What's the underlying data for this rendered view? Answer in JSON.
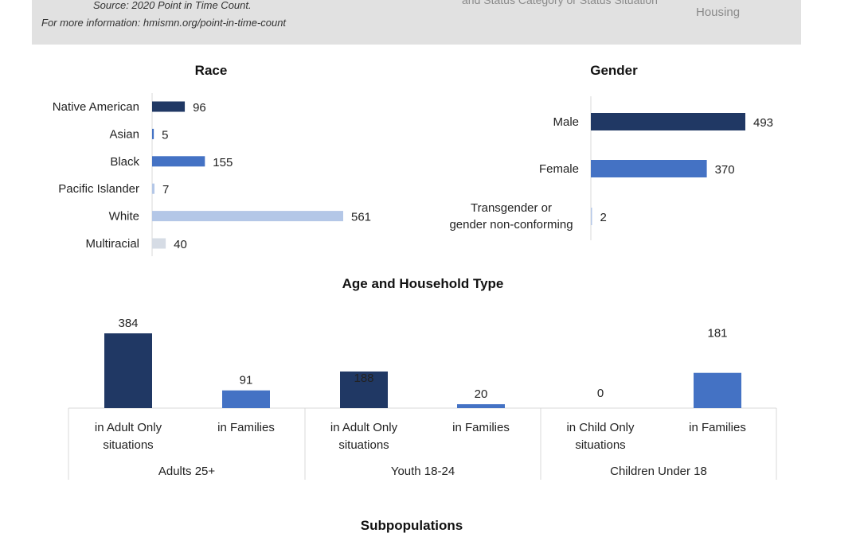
{
  "banner": {
    "source": "Source: 2020 Point in Time Count.",
    "more_info": "For more information: hmismn.org/point-in-time-count",
    "cut_text": "and Status          Category or Status              Situation",
    "housing": "Housing"
  },
  "colors": {
    "navy": "#203864",
    "blue": "#4472c4",
    "light_blue": "#b4c7e7",
    "gray": "#d6dce5",
    "banner_bg": "#e1e1e1"
  },
  "chart_data": [
    {
      "id": "race",
      "type": "bar",
      "orientation": "horizontal",
      "title": "Race",
      "categories": [
        "Native American",
        "Asian",
        "Black",
        "Pacific Islander",
        "White",
        "Multiracial"
      ],
      "values": [
        96,
        5,
        155,
        7,
        561,
        40
      ],
      "bar_colors": [
        "#203864",
        "#4472c4",
        "#4472c4",
        "#b4c7e7",
        "#b4c7e7",
        "#d6dce5"
      ],
      "xlim": [
        0,
        561
      ],
      "grid": false,
      "data_labels": true
    },
    {
      "id": "gender",
      "type": "bar",
      "orientation": "horizontal",
      "title": "Gender",
      "categories": [
        "Male",
        "Female",
        "Transgender or gender non-conforming"
      ],
      "values": [
        493,
        370,
        2
      ],
      "bar_colors": [
        "#203864",
        "#4472c4",
        "#b4c7e7"
      ],
      "xlim": [
        0,
        493
      ],
      "grid": false,
      "data_labels": true
    },
    {
      "id": "age",
      "type": "bar",
      "orientation": "vertical",
      "title": "Age and Household Type",
      "groups": [
        {
          "label": "Adults 25+",
          "categories": [
            "in Adult Only situations",
            "in Families"
          ],
          "values": [
            384,
            91
          ]
        },
        {
          "label": "Youth 18-24",
          "categories": [
            "in Adult Only situations",
            "in Families"
          ],
          "values": [
            188,
            20
          ]
        },
        {
          "label": "Children Under 18",
          "categories": [
            "in Child Only situations",
            "in Families"
          ],
          "values": [
            0,
            181
          ]
        }
      ],
      "bar_colors": [
        "#203864",
        "#4472c4"
      ],
      "ylim": [
        0,
        384
      ],
      "grid": false,
      "data_labels": true
    }
  ],
  "subpopulations": {
    "title": "Subpopulations"
  }
}
